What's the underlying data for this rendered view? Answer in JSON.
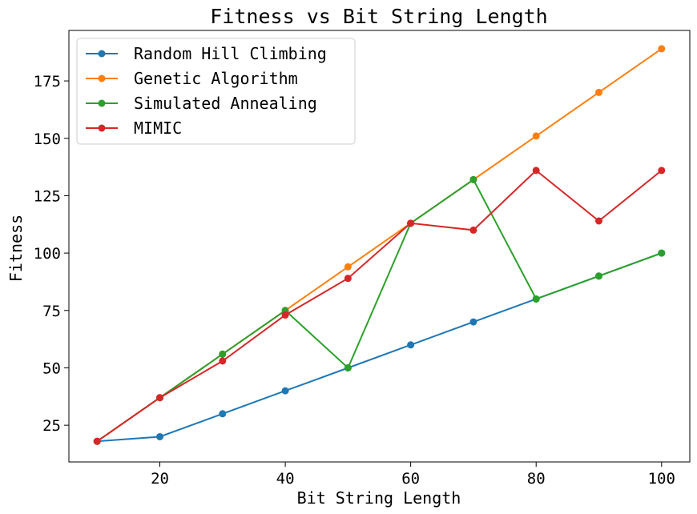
{
  "chart_data": {
    "type": "line",
    "title": "Fitness vs Bit String Length",
    "xlabel": "Bit String Length",
    "ylabel": "Fitness",
    "x": [
      10,
      20,
      30,
      40,
      50,
      60,
      70,
      80,
      90,
      100
    ],
    "xlim": [
      5.5,
      104.5
    ],
    "ylim": [
      9,
      197
    ],
    "xticks": [
      20,
      40,
      60,
      80,
      100
    ],
    "yticks": [
      25,
      50,
      75,
      100,
      125,
      150,
      175
    ],
    "grid": false,
    "legend_position": "top-left",
    "series": [
      {
        "name": "Random Hill Climbing",
        "color": "#1f77b4",
        "values": [
          18,
          20,
          30,
          40,
          50,
          60,
          70,
          80,
          90,
          100
        ]
      },
      {
        "name": "Genetic Algorithm",
        "color": "#ff7f0e",
        "values": [
          18,
          37,
          56,
          75,
          94,
          113,
          132,
          151,
          170,
          189
        ]
      },
      {
        "name": "Simulated Annealing",
        "color": "#2ca02c",
        "values": [
          18,
          37,
          56,
          75,
          50,
          113,
          132,
          80,
          90,
          100
        ]
      },
      {
        "name": "MIMIC",
        "color": "#d62728",
        "values": [
          18,
          37,
          53,
          73,
          89,
          113,
          110,
          136,
          114,
          136
        ]
      }
    ]
  }
}
